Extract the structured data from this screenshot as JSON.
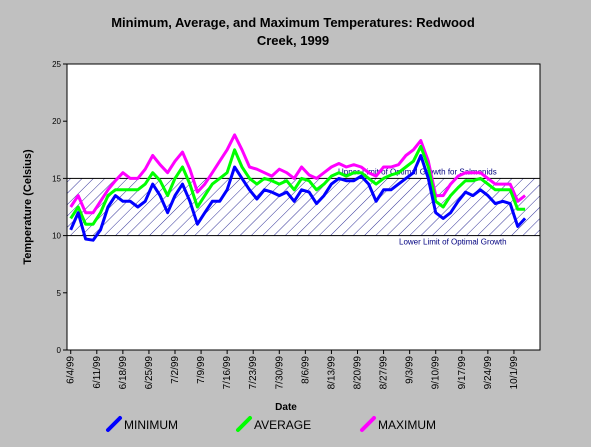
{
  "chart_data": {
    "type": "line",
    "title": [
      "Minimum, Average, and Maximum Temperatures:  Redwood",
      "Creek, 1999"
    ],
    "x_label": "Date",
    "y_label": "Temperature (Celsius)",
    "x": [
      "6/4/99",
      "6/6/99",
      "6/8/99",
      "6/10/99",
      "6/12/99",
      "6/14/99",
      "6/16/99",
      "6/18/99",
      "6/20/99",
      "6/22/99",
      "6/24/99",
      "6/26/99",
      "6/28/99",
      "6/30/99",
      "7/2/99",
      "7/4/99",
      "7/6/99",
      "7/8/99",
      "7/10/99",
      "7/12/99",
      "7/14/99",
      "7/16/99",
      "7/18/99",
      "7/20/99",
      "7/22/99",
      "7/24/99",
      "7/26/99",
      "7/28/99",
      "7/30/99",
      "8/1/99",
      "8/3/99",
      "8/5/99",
      "8/7/99",
      "8/9/99",
      "8/11/99",
      "8/13/99",
      "8/15/99",
      "8/17/99",
      "8/19/99",
      "8/21/99",
      "8/23/99",
      "8/25/99",
      "8/27/99",
      "8/29/99",
      "8/31/99",
      "9/2/99",
      "9/4/99",
      "9/6/99",
      "9/8/99",
      "9/10/99",
      "9/12/99",
      "9/14/99",
      "9/16/99",
      "9/18/99",
      "9/20/99",
      "9/22/99",
      "9/24/99",
      "9/26/99",
      "9/28/99",
      "9/30/99",
      "10/2/99",
      "10/4/99"
    ],
    "series": [
      {
        "name": "MINIMUM",
        "color": "#0000ff",
        "values": [
          10.5,
          12,
          9.7,
          9.6,
          10.5,
          12.5,
          13.5,
          13,
          13,
          12.5,
          13,
          14.5,
          13.5,
          12,
          13.5,
          14.5,
          13,
          11,
          12,
          13,
          13,
          14,
          16,
          15,
          14,
          13.2,
          14,
          13.8,
          13.5,
          13.8,
          13,
          14,
          13.8,
          12.8,
          13.5,
          14.5,
          15,
          14.8,
          14.8,
          15.2,
          14.5,
          13,
          14,
          14,
          14.5,
          15,
          15.5,
          17,
          15,
          12,
          11.5,
          12,
          13,
          13.8,
          13.5,
          14,
          13.5,
          12.8,
          13,
          12.8,
          10.8,
          11.5
        ]
      },
      {
        "name": "AVERAGE",
        "color": "#00ff00",
        "values": [
          11.5,
          12.5,
          11,
          11,
          12,
          13.5,
          14,
          14,
          14,
          14,
          14.5,
          15.5,
          14.8,
          13.5,
          15,
          16,
          14.5,
          12.5,
          13.5,
          14.5,
          15,
          15.5,
          17.5,
          16,
          15,
          14.5,
          15,
          14.8,
          14.5,
          14.8,
          14,
          15,
          14.8,
          14,
          14.5,
          15.2,
          15.5,
          15.2,
          15.5,
          15.5,
          15,
          14.5,
          15,
          15.3,
          15.5,
          16,
          16.5,
          17.8,
          16,
          13,
          12.5,
          13.5,
          14.2,
          14.8,
          14.8,
          15,
          14.5,
          14,
          14,
          14,
          12.3,
          12.3
        ]
      },
      {
        "name": "MAXIMUM",
        "color": "#ff00ff",
        "values": [
          12.5,
          13.5,
          12,
          12,
          13,
          14,
          14.8,
          15.5,
          15,
          15,
          15.8,
          17,
          16.2,
          15.5,
          16.5,
          17.3,
          15.8,
          13.8,
          14.5,
          15.5,
          16.5,
          17.5,
          18.8,
          17.5,
          16,
          15.8,
          15.5,
          15.2,
          15.8,
          15.5,
          15,
          16,
          15.3,
          15,
          15.5,
          16,
          16.3,
          16,
          16.2,
          16,
          15.5,
          15.2,
          16,
          16,
          16.2,
          17,
          17.5,
          18.3,
          16.5,
          13.5,
          13.5,
          14.5,
          15.2,
          15.5,
          15.5,
          15.5,
          15,
          14.5,
          14.5,
          14.5,
          13,
          13.5
        ]
      }
    ],
    "xlim": [
      "6/3/99",
      "10/8/99"
    ],
    "xticks": [
      "6/4/99",
      "6/11/99",
      "6/18/99",
      "6/25/99",
      "7/2/99",
      "7/9/99",
      "7/16/99",
      "7/23/99",
      "7/30/99",
      "8/6/99",
      "8/13/99",
      "8/20/99",
      "8/27/99",
      "9/3/99",
      "9/10/99",
      "9/17/99",
      "9/24/99",
      "10/1/99"
    ],
    "ylim": [
      0,
      25
    ],
    "yticks": [
      0,
      5,
      10,
      15,
      20,
      25
    ],
    "optimal_band": {
      "low": 10,
      "high": 15,
      "upper_label": "Upper Limit of Optimal Growth for Salmonids",
      "lower_label": "Lower Limit of Optimal Growth"
    },
    "legend": "bottom"
  }
}
